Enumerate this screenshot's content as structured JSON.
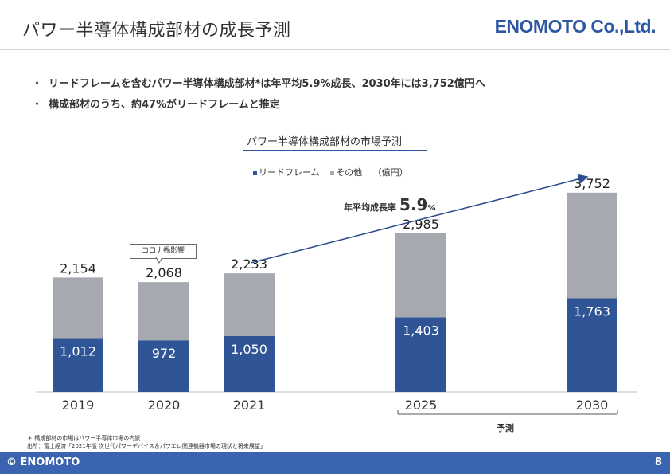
{
  "header": {
    "title": "パワー半導体構成部材の成長予測",
    "logo_text": "ENOMOTO Co.,Ltd."
  },
  "bullets": [
    "リードフレームを含むパワー半導体構成部材*は年平均5.9%成長、2030年には3,752億円へ",
    "構成部材のうち、約47%がリードフレームと推定"
  ],
  "bullet_marker": "・",
  "chart_data": {
    "type": "bar",
    "title": "パワー半導体構成部材の市場予測",
    "unit": "（億円）",
    "categories": [
      "2019",
      "2020",
      "2021",
      "2025",
      "2030"
    ],
    "series": [
      {
        "name": "リードフレーム",
        "values": [
          1012,
          972,
          1050,
          1403,
          1763
        ],
        "labels": [
          "1,012",
          "972",
          "1,050",
          "1,403",
          "1,763"
        ],
        "color": "#2f5597"
      },
      {
        "name": "その他",
        "values": [
          1142,
          1096,
          1183,
          1582,
          1989
        ],
        "color": "#a6a9b0"
      }
    ],
    "totals": [
      2154,
      2068,
      2233,
      2985,
      3752
    ],
    "total_labels": [
      "2,154",
      "2,068",
      "2,233",
      "2,985",
      "3,752"
    ],
    "stacked": true,
    "ylim": [
      0,
      4000
    ],
    "grid": false,
    "annotations": {
      "cagr_label": "年平均成長率",
      "cagr_value": "5.9",
      "cagr_unit": "%",
      "covid_note": "コロナ禍影響",
      "forecast_label": "予測"
    }
  },
  "notes": {
    "line1": "＊ 構成部材の市場はパワー半導体市場の内訳",
    "line2": "出所：富士経済「2021年版 次世代パワーデバイス＆パワエレ関連機器市場の現状と将来展望」"
  },
  "footer": {
    "copyright": "© ENOMOTO",
    "page_number": "8"
  },
  "colors": {
    "accent": "#2d57a3",
    "lead_frame": "#2f5597",
    "other": "#a6a9b0",
    "footer_bg": "#3a63b0"
  }
}
